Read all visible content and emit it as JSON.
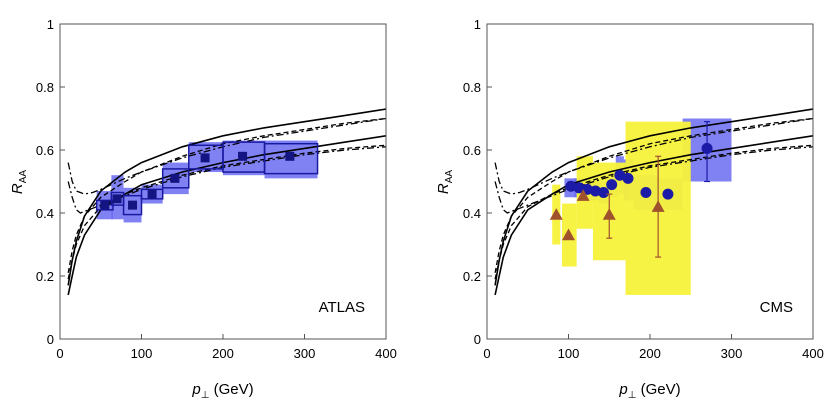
{
  "chart_data": [
    {
      "type": "scatter",
      "panel_label": "ATLAS",
      "xlabel_main": "p",
      "xlabel_sub": "⊥",
      "xlabel_rest": " (GeV)",
      "ylabel_main": "R",
      "ylabel_sub": "AA",
      "xlim": [
        0,
        400
      ],
      "ylim": [
        0,
        1
      ],
      "xticks": [
        0,
        100,
        200,
        300,
        400
      ],
      "yticks": [
        0,
        0.2,
        0.4,
        0.6,
        0.8,
        1
      ],
      "xticklabels": [
        "0",
        "100",
        "200",
        "300",
        "400"
      ],
      "yticklabels": [
        "0",
        "0.2",
        "0.4",
        "0.6",
        "0.8",
        "1"
      ],
      "colors": {
        "box": "#6a6cf2",
        "marker": "#141482",
        "outline": "#1a1aa0",
        "curve": "#000000"
      },
      "series": [
        {
          "name": "ATLAS data",
          "marker": "square",
          "points": [
            {
              "x": 55,
              "y": 0.425,
              "xlo": 45,
              "xhi": 65,
              "ylo": 0.38,
              "yhi": 0.47,
              "olo": 0.41,
              "ohi": 0.44
            },
            {
              "x": 70,
              "y": 0.445,
              "xlo": 63,
              "xhi": 78,
              "ylo": 0.38,
              "yhi": 0.52,
              "olo": 0.425,
              "ohi": 0.465
            },
            {
              "x": 89,
              "y": 0.425,
              "xlo": 78,
              "xhi": 100,
              "ylo": 0.37,
              "yhi": 0.48,
              "olo": 0.395,
              "ohi": 0.455
            },
            {
              "x": 113,
              "y": 0.46,
              "xlo": 100,
              "xhi": 126,
              "ylo": 0.43,
              "yhi": 0.49,
              "olo": 0.445,
              "ohi": 0.475
            },
            {
              "x": 141,
              "y": 0.51,
              "xlo": 126,
              "xhi": 158,
              "ylo": 0.46,
              "yhi": 0.56,
              "olo": 0.48,
              "ohi": 0.54
            },
            {
              "x": 178,
              "y": 0.575,
              "xlo": 158,
              "xhi": 200,
              "ylo": 0.53,
              "yhi": 0.625,
              "olo": 0.54,
              "ohi": 0.615
            },
            {
              "x": 224,
              "y": 0.58,
              "xlo": 200,
              "xhi": 251,
              "ylo": 0.52,
              "yhi": 0.63,
              "olo": 0.53,
              "ohi": 0.625
            },
            {
              "x": 282,
              "y": 0.58,
              "xlo": 251,
              "xhi": 316,
              "ylo": 0.51,
              "yhi": 0.63,
              "olo": 0.525,
              "ohi": 0.62
            }
          ]
        }
      ]
    },
    {
      "type": "scatter",
      "panel_label": "CMS",
      "xlabel_main": "p",
      "xlabel_sub": "⊥",
      "xlabel_rest": " (GeV)",
      "ylabel_main": "R",
      "ylabel_sub": "AA",
      "xlim": [
        0,
        400
      ],
      "ylim": [
        0,
        1
      ],
      "xticks": [
        0,
        100,
        200,
        300,
        400
      ],
      "yticks": [
        0,
        0.2,
        0.4,
        0.6,
        0.8,
        1
      ],
      "xticklabels": [
        "0",
        "100",
        "200",
        "300",
        "400"
      ],
      "yticklabels": [
        "0",
        "0.2",
        "0.4",
        "0.6",
        "0.8",
        "1"
      ],
      "colors": {
        "box_yellow": "#f7f23a",
        "box_blue": "#6a6cf2",
        "circle": "#1b1ba8",
        "triangle": "#a0522d",
        "curve": "#000000"
      },
      "series": [
        {
          "name": "CMS circles",
          "marker": "circle",
          "points": [
            {
              "x": 103,
              "y": 0.485,
              "xlo": 95,
              "xhi": 110,
              "ylo": 0.45,
              "yhi": 0.51
            },
            {
              "x": 113,
              "y": 0.48,
              "xlo": 107,
              "xhi": 119,
              "ylo": 0.45,
              "yhi": 0.51
            },
            {
              "x": 123,
              "y": 0.475,
              "xlo": 117,
              "xhi": 129,
              "ylo": 0.44,
              "yhi": 0.51
            },
            {
              "x": 133,
              "y": 0.47,
              "xlo": 127,
              "xhi": 139,
              "ylo": 0.44,
              "yhi": 0.5
            },
            {
              "x": 143,
              "y": 0.465,
              "xlo": 137,
              "xhi": 150,
              "ylo": 0.43,
              "yhi": 0.5
            },
            {
              "x": 153,
              "y": 0.49,
              "xlo": 147,
              "xhi": 160,
              "ylo": 0.45,
              "yhi": 0.53
            },
            {
              "x": 163,
              "y": 0.52,
              "xlo": 158,
              "xhi": 168,
              "ylo": 0.46,
              "yhi": 0.58
            },
            {
              "x": 173,
              "y": 0.51,
              "xlo": 168,
              "xhi": 180,
              "ylo": 0.44,
              "yhi": 0.57
            },
            {
              "x": 195,
              "y": 0.465,
              "xlo": 180,
              "xhi": 210,
              "ylo": 0.41,
              "yhi": 0.52
            },
            {
              "x": 222,
              "y": 0.46,
              "xlo": 205,
              "xhi": 240,
              "ylo": 0.41,
              "yhi": 0.51
            },
            {
              "x": 270,
              "y": 0.605,
              "xlo": 240,
              "xhi": 300,
              "ylo": 0.5,
              "yhi": 0.7,
              "elo": 0.5,
              "ehi": 0.69
            }
          ]
        },
        {
          "name": "CMS triangles",
          "marker": "triangle",
          "points": [
            {
              "x": 85,
              "y": 0.395,
              "xlo": 80,
              "xhi": 90,
              "ylo": 0.3,
              "yhi": 0.49
            },
            {
              "x": 100,
              "y": 0.33,
              "xlo": 92,
              "xhi": 110,
              "ylo": 0.23,
              "yhi": 0.43
            },
            {
              "x": 118,
              "y": 0.455,
              "xlo": 110,
              "xhi": 130,
              "ylo": 0.35,
              "yhi": 0.58
            },
            {
              "x": 150,
              "y": 0.395,
              "xlo": 130,
              "xhi": 170,
              "ylo": 0.25,
              "yhi": 0.56,
              "elo": 0.32,
              "ehi": 0.46
            },
            {
              "x": 210,
              "y": 0.42,
              "xlo": 170,
              "xhi": 250,
              "ylo": 0.14,
              "yhi": 0.69,
              "elo": 0.26,
              "ehi": 0.58
            }
          ]
        }
      ]
    }
  ],
  "theory_curves": [
    {
      "name": "upper solid",
      "style": "solid",
      "x": [
        10,
        15,
        20,
        30,
        50,
        80,
        100,
        150,
        200,
        250,
        300,
        350,
        400
      ],
      "y": [
        0.17,
        0.25,
        0.31,
        0.39,
        0.47,
        0.53,
        0.56,
        0.61,
        0.645,
        0.67,
        0.69,
        0.71,
        0.73
      ]
    },
    {
      "name": "lower solid",
      "style": "solid",
      "x": [
        10,
        15,
        20,
        30,
        50,
        80,
        100,
        150,
        200,
        250,
        300,
        350,
        400
      ],
      "y": [
        0.14,
        0.2,
        0.26,
        0.33,
        0.41,
        0.46,
        0.49,
        0.53,
        0.56,
        0.585,
        0.605,
        0.625,
        0.645
      ]
    },
    {
      "name": "upper dashed",
      "style": "dashed",
      "x": [
        10,
        15,
        20,
        30,
        50,
        80,
        100,
        150,
        200,
        250,
        300,
        350,
        400
      ],
      "y": [
        0.21,
        0.28,
        0.33,
        0.39,
        0.45,
        0.5,
        0.53,
        0.58,
        0.62,
        0.645,
        0.665,
        0.685,
        0.7
      ]
    },
    {
      "name": "lower dashed",
      "style": "dashed",
      "x": [
        10,
        15,
        20,
        30,
        50,
        80,
        100,
        150,
        200,
        250,
        300,
        350,
        400
      ],
      "y": [
        0.19,
        0.25,
        0.3,
        0.36,
        0.42,
        0.46,
        0.48,
        0.52,
        0.55,
        0.57,
        0.59,
        0.605,
        0.615
      ]
    },
    {
      "name": "upper dash-dot",
      "style": "dashdot",
      "x": [
        10,
        15,
        20,
        25,
        30,
        40,
        50,
        80,
        100,
        150,
        200,
        250,
        300,
        350,
        400
      ],
      "y": [
        0.56,
        0.5,
        0.47,
        0.465,
        0.46,
        0.465,
        0.475,
        0.51,
        0.53,
        0.575,
        0.61,
        0.64,
        0.66,
        0.68,
        0.7
      ]
    },
    {
      "name": "lower dash-dot",
      "style": "dashdot",
      "x": [
        10,
        15,
        20,
        25,
        30,
        40,
        50,
        80,
        100,
        150,
        200,
        250,
        300,
        350,
        400
      ],
      "y": [
        0.5,
        0.45,
        0.41,
        0.4,
        0.405,
        0.415,
        0.425,
        0.455,
        0.475,
        0.515,
        0.545,
        0.565,
        0.585,
        0.6,
        0.61
      ]
    }
  ]
}
